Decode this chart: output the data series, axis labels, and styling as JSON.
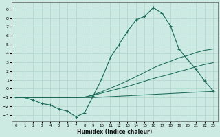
{
  "xlabel": "Humidex (Indice chaleur)",
  "xlim": [
    -0.5,
    23.5
  ],
  "ylim": [
    -3.7,
    9.8
  ],
  "xticks": [
    0,
    1,
    2,
    3,
    4,
    5,
    6,
    7,
    8,
    9,
    10,
    11,
    12,
    13,
    14,
    15,
    16,
    17,
    18,
    19,
    20,
    21,
    22,
    23
  ],
  "yticks": [
    -3,
    -2,
    -1,
    0,
    1,
    2,
    3,
    4,
    5,
    6,
    7,
    8,
    9
  ],
  "background_color": "#cce9e2",
  "grid_color": "#aed4cc",
  "line_color": "#1a6b5a",
  "curve_main": [
    -1.0,
    -1.0,
    -1.3,
    -1.7,
    -1.85,
    -2.3,
    -2.55,
    -3.2,
    -2.75,
    -0.85,
    1.1,
    3.5,
    5.0,
    6.5,
    7.8,
    8.2,
    9.2,
    8.6,
    7.15,
    4.5,
    3.3,
    2.2,
    0.85,
    -0.25
  ],
  "line_upper": [
    -1.0,
    -1.0,
    -1.0,
    -1.0,
    -1.0,
    -1.0,
    -1.0,
    -1.0,
    -0.95,
    -0.7,
    -0.35,
    0.05,
    0.45,
    0.9,
    1.35,
    1.85,
    2.35,
    2.75,
    3.1,
    3.5,
    3.75,
    4.1,
    4.35,
    4.5
  ],
  "line_lower": [
    -1.0,
    -1.0,
    -1.0,
    -1.0,
    -1.0,
    -1.0,
    -1.0,
    -1.0,
    -0.95,
    -0.75,
    -0.5,
    -0.25,
    0.0,
    0.25,
    0.55,
    0.85,
    1.15,
    1.4,
    1.65,
    1.95,
    2.2,
    2.5,
    2.75,
    2.95
  ],
  "line_flat": [
    -1.0,
    -1.0,
    -1.0,
    -1.0,
    -1.0,
    -1.0,
    -1.0,
    -1.0,
    -1.0,
    -1.0,
    -0.95,
    -0.9,
    -0.85,
    -0.8,
    -0.75,
    -0.7,
    -0.65,
    -0.6,
    -0.55,
    -0.5,
    -0.45,
    -0.4,
    -0.35,
    -0.3
  ]
}
